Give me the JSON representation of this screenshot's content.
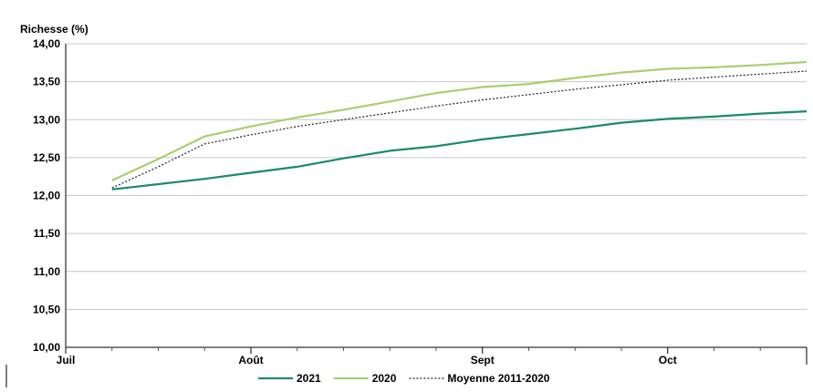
{
  "chart_data": {
    "type": "line",
    "ylabel": "Richesse (%)",
    "ylim": [
      10,
      14
    ],
    "yticks": [
      "10,00",
      "10,50",
      "11,00",
      "11,50",
      "12,00",
      "12,50",
      "13,00",
      "13,50",
      "14,00"
    ],
    "xlim": [
      0,
      16
    ],
    "month_labels": [
      {
        "x": 0,
        "label": "Juil"
      },
      {
        "x": 4,
        "label": "Août"
      },
      {
        "x": 9,
        "label": "Sept"
      },
      {
        "x": 13,
        "label": "Oct"
      }
    ],
    "minor_ticks": [
      1,
      2,
      3,
      5,
      6,
      7,
      8,
      10,
      11,
      12,
      14,
      15
    ],
    "grid": true,
    "legend_position": "bottom",
    "series": [
      {
        "name": "2021",
        "color": "#1b8a6b",
        "style": "solid",
        "x": [
          1,
          2,
          3,
          4,
          5,
          6,
          7,
          8,
          9,
          10,
          11,
          12,
          13,
          14,
          15,
          16
        ],
        "y": [
          12.08,
          12.15,
          12.22,
          12.3,
          12.38,
          12.49,
          12.59,
          12.65,
          12.74,
          12.81,
          12.88,
          12.96,
          13.01,
          13.04,
          13.08,
          13.11
        ]
      },
      {
        "name": "2020",
        "color": "#a9cf6e",
        "style": "solid",
        "x": [
          1,
          2,
          3,
          4,
          5,
          6,
          7,
          8,
          9,
          10,
          11,
          12,
          13,
          14,
          15,
          16
        ],
        "y": [
          12.2,
          12.48,
          12.78,
          12.91,
          13.03,
          13.13,
          13.24,
          13.35,
          13.43,
          13.47,
          13.55,
          13.62,
          13.67,
          13.69,
          13.72,
          13.76
        ]
      },
      {
        "name": "Moyenne 2011-2020",
        "color": "#222222",
        "style": "dotted",
        "x": [
          1,
          2,
          3,
          4,
          5,
          6,
          7,
          8,
          9,
          10,
          11,
          12,
          13,
          14,
          15,
          16
        ],
        "y": [
          12.1,
          12.38,
          12.68,
          12.8,
          12.91,
          13.0,
          13.09,
          13.18,
          13.26,
          13.33,
          13.4,
          13.46,
          13.52,
          13.56,
          13.6,
          13.64
        ]
      }
    ]
  }
}
